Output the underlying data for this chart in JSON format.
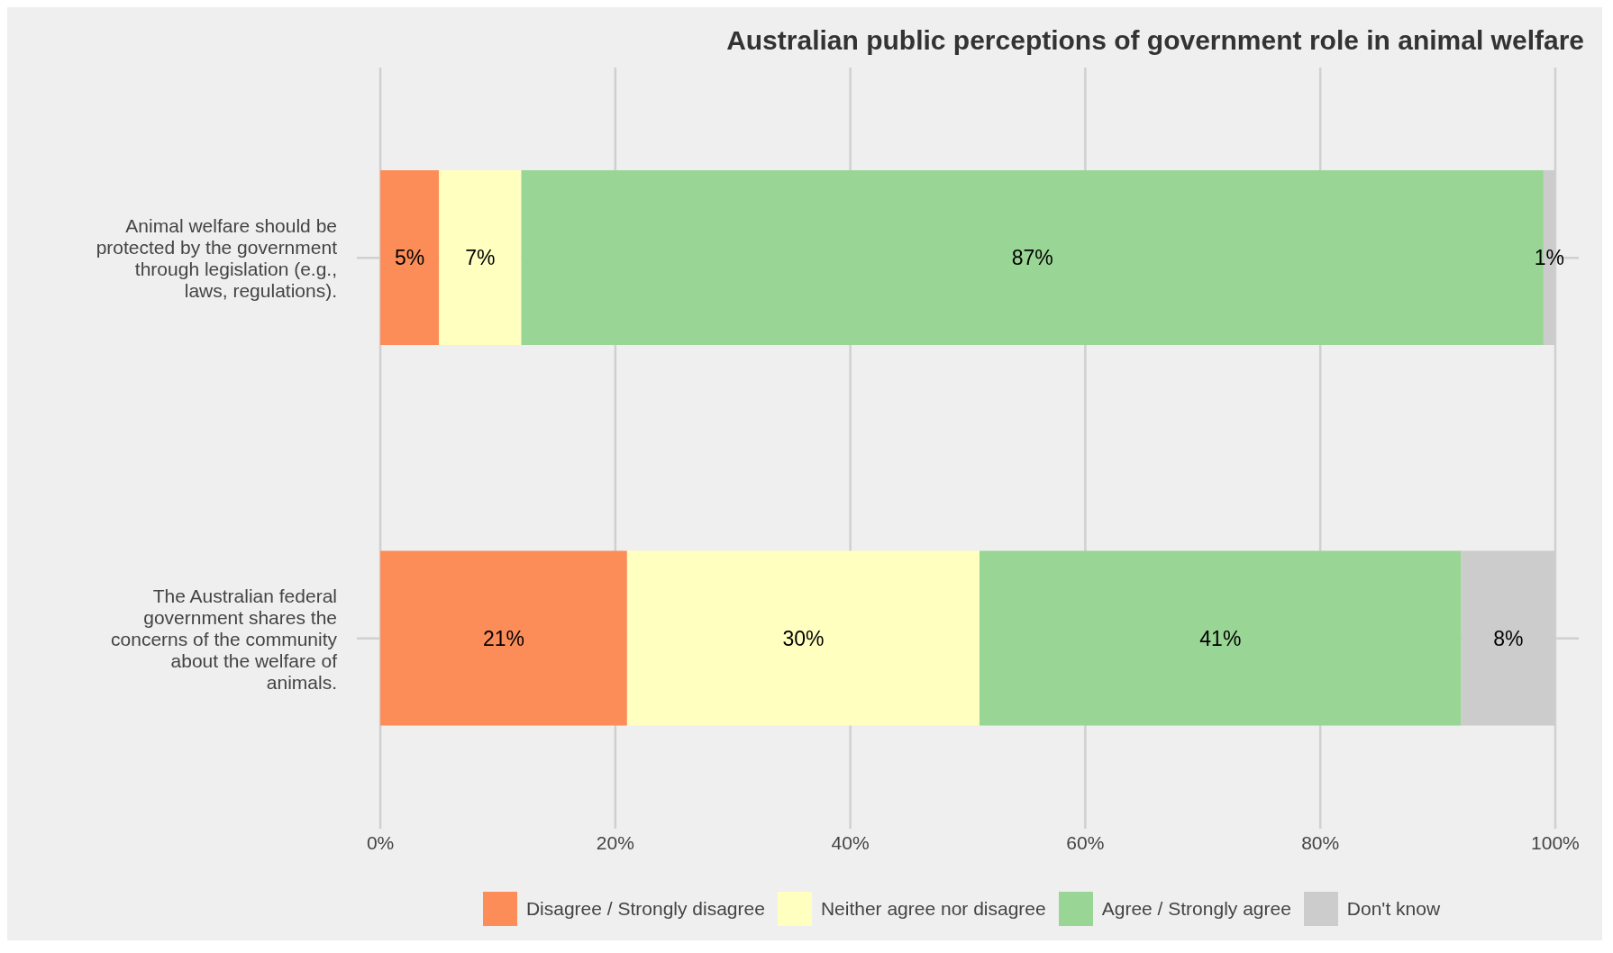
{
  "chart_data": {
    "type": "bar",
    "orientation": "horizontal",
    "stacked": true,
    "title": "Australian public perceptions of government role in animal welfare",
    "categories": [
      "Animal welfare should be protected by the government through legislation (e.g., laws, regulations).",
      "The Australian federal government shares the concerns of the community about the welfare of animals."
    ],
    "series": [
      {
        "name": "Disagree / Strongly disagree",
        "color": "#fc8d59",
        "values": [
          5,
          21
        ],
        "value_labels": [
          "5%",
          "21%"
        ]
      },
      {
        "name": "Neither agree nor disagree",
        "color": "#ffffbf",
        "values": [
          7,
          30
        ],
        "value_labels": [
          "7%",
          "30%"
        ]
      },
      {
        "name": "Agree / Strongly agree",
        "color": "#99d594",
        "values": [
          87,
          41
        ],
        "value_labels": [
          "87%",
          "41%"
        ]
      },
      {
        "name": "Don't know",
        "color": "#cccccc",
        "values": [
          1,
          8
        ],
        "value_labels": [
          "1%",
          "8%"
        ]
      }
    ],
    "xlim": [
      -2,
      102
    ],
    "xticks": [
      {
        "value": 0,
        "label": "0%"
      },
      {
        "value": 20,
        "label": "20%"
      },
      {
        "value": 40,
        "label": "40%"
      },
      {
        "value": 60,
        "label": "60%"
      },
      {
        "value": 80,
        "label": "80%"
      },
      {
        "value": 100,
        "label": "100%"
      }
    ],
    "grid": true,
    "legend": "bottom"
  }
}
